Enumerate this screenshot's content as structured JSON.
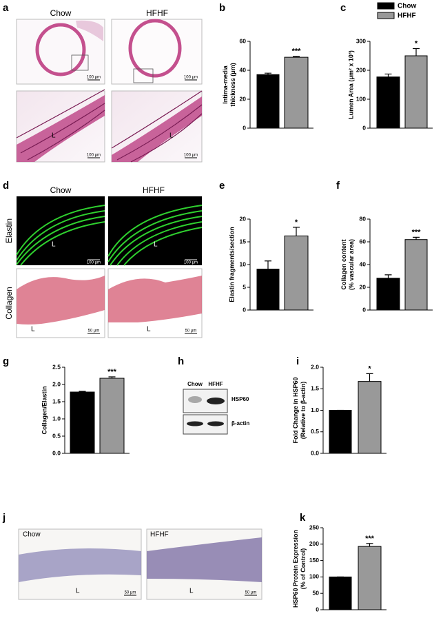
{
  "panels": {
    "a": {
      "letter": "a",
      "columns": [
        "Chow",
        "HFHF"
      ],
      "scale_bars": [
        "100 μm",
        "100 μm",
        "100 μm",
        "100 μm"
      ],
      "lumen": [
        "L",
        "L"
      ]
    },
    "d": {
      "letter": "d",
      "columns": [
        "Chow",
        "HFHF"
      ],
      "rows": [
        "Elastin",
        "Collagen"
      ],
      "scale_bars": [
        "100 μm",
        "100 μm",
        "50 μm",
        "50 μm"
      ],
      "lumen": [
        "L",
        "L",
        "L",
        "L"
      ]
    },
    "h": {
      "letter": "h",
      "columns": [
        "Chow",
        "HFHF"
      ],
      "bands": [
        "HSP60",
        "β-actin"
      ]
    },
    "j": {
      "letter": "j",
      "columns": [
        "Chow",
        "HFHF"
      ],
      "lumen": [
        "L",
        "L"
      ],
      "scale_bars": [
        "50 μm",
        "50 μm"
      ]
    }
  },
  "legend": [
    {
      "name": "Chow",
      "color": "#000000"
    },
    {
      "name": "HFHF",
      "color": "#999999"
    }
  ],
  "chart_data": [
    {
      "type": "bar",
      "panel": "b",
      "ylabel": [
        "Intima-media",
        "thickness (μm)"
      ],
      "values": [
        37,
        49
      ],
      "errors": [
        1,
        0.6
      ],
      "annotation": "***",
      "ylim": [
        0,
        60
      ],
      "yticks": [
        0,
        20,
        40,
        60
      ]
    },
    {
      "type": "bar",
      "panel": "c",
      "ylabel": [
        "Lumen Area (μm² x 10³)"
      ],
      "values": [
        177,
        250
      ],
      "errors": [
        10,
        25
      ],
      "annotation": "*",
      "ylim": [
        0,
        300
      ],
      "yticks": [
        0,
        100,
        200,
        300
      ]
    },
    {
      "type": "bar",
      "panel": "e",
      "ylabel": [
        "Elastin fragments/section"
      ],
      "values": [
        9,
        16.3
      ],
      "errors": [
        1.8,
        1.9
      ],
      "annotation": "*",
      "ylim": [
        0,
        20
      ],
      "yticks": [
        0,
        5,
        10,
        15,
        20
      ]
    },
    {
      "type": "bar",
      "panel": "f",
      "ylabel": [
        "Collagen content",
        "(% vascular area)"
      ],
      "values": [
        28,
        62
      ],
      "errors": [
        3,
        2
      ],
      "annotation": "***",
      "ylim": [
        0,
        80
      ],
      "yticks": [
        0,
        20,
        40,
        60,
        80
      ]
    },
    {
      "type": "bar",
      "panel": "g",
      "ylabel": [
        "Collagen/Elastin"
      ],
      "values": [
        1.78,
        2.18
      ],
      "errors": [
        0.02,
        0.04
      ],
      "annotation": "***",
      "ylim": [
        0,
        2.5
      ],
      "yticks": [
        {
          "value": 0,
          "label": "0.0"
        },
        0.5,
        {
          "value": 1,
          "label": "1.0"
        },
        1.5,
        {
          "value": 2,
          "label": "2.0"
        },
        2.5
      ]
    },
    {
      "type": "bar",
      "panel": "i",
      "ylabel": [
        "Fold Change in HSP60",
        "(Relative to β-actin)"
      ],
      "values": [
        1.0,
        1.67
      ],
      "errors": [
        0,
        0.18
      ],
      "annotation": "*",
      "ylim": [
        0,
        2
      ],
      "yticks": [
        {
          "value": 0,
          "label": "0.0"
        },
        0.5,
        {
          "value": 1,
          "label": "1.0"
        },
        1.5,
        {
          "value": 2,
          "label": "2.0"
        }
      ]
    },
    {
      "type": "bar",
      "panel": "k",
      "ylabel": [
        "HSP60 Protein Expression",
        "(% of Control)"
      ],
      "values": [
        100,
        193
      ],
      "errors": [
        0,
        9
      ],
      "annotation": "***",
      "ylim": [
        0,
        250
      ],
      "yticks": [
        0,
        50,
        100,
        150,
        200,
        250
      ]
    }
  ]
}
